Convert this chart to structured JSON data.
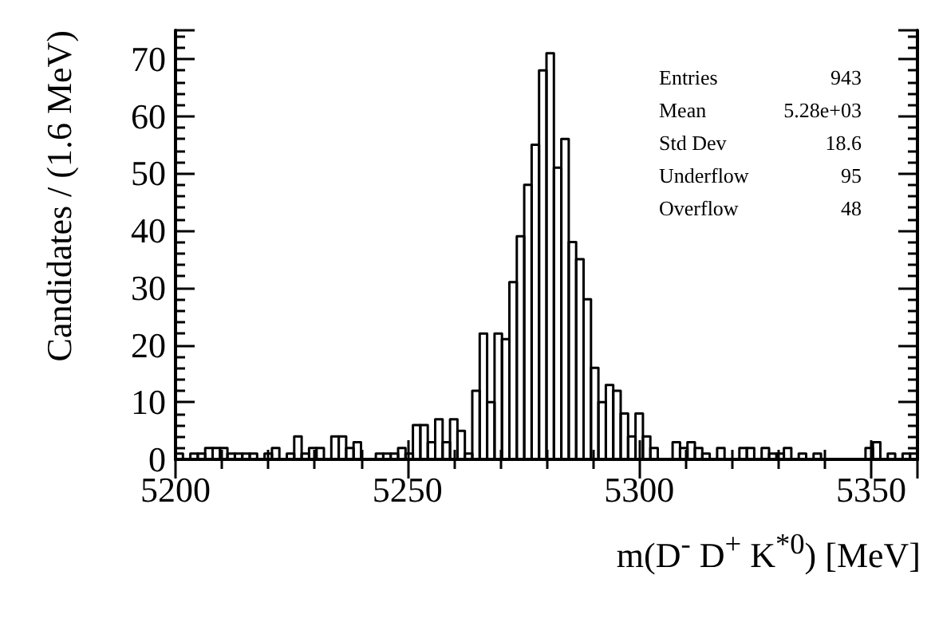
{
  "chart_data": {
    "type": "histogram",
    "xlabel": "m(D$^{-}$ D$^{+}$ K$^{*0}$) [MeV]",
    "ylabel": "Candidates / (1.6 MeV)",
    "annotations": [
      "Entries 943",
      "Mean 5.28e+03",
      "Std Dev 18.6",
      "Underflow 95",
      "Overflow 48"
    ],
    "color": "#000000",
    "bins": [
      5200,
      5201.6,
      5203.2,
      5204.8,
      5206.4,
      5208,
      5209.6,
      5211.2,
      5212.8,
      5214.4,
      5216,
      5217.6,
      5219.2,
      5220.8,
      5222.4,
      5224,
      5225.6,
      5227.2,
      5228.8,
      5230.4,
      5232,
      5233.6,
      5235.2,
      5236.8,
      5238.4,
      5240,
      5241.6,
      5243.2,
      5244.8,
      5246.4,
      5248,
      5249.6,
      5251.2,
      5252.8,
      5254.4,
      5256,
      5257.6,
      5259.2,
      5260.8,
      5262.4,
      5264,
      5265.6,
      5267.2,
      5268.8,
      5270.4,
      5272,
      5273.6,
      5275.2,
      5276.8,
      5278.4,
      5280,
      5281.6,
      5283.2,
      5284.8,
      5286.4,
      5288,
      5289.6,
      5291.2,
      5292.8,
      5294.4,
      5296,
      5297.6,
      5299.2,
      5300.8,
      5302.4,
      5304,
      5305.6,
      5307.2,
      5308.8,
      5310.4,
      5312,
      5313.6,
      5315.2,
      5316.8,
      5318.4,
      5320,
      5321.6,
      5323.2,
      5324.8,
      5326.4,
      5328,
      5329.6,
      5331.2,
      5332.8,
      5334.4,
      5336,
      5337.6,
      5339.2,
      5340.8,
      5342.4,
      5344,
      5345.6,
      5347.2,
      5348.8,
      5350.4,
      5352,
      5353.6,
      5355.2,
      5356.8,
      5358.4,
      5360
    ],
    "values": [
      1,
      0,
      1,
      1,
      2,
      2,
      2,
      1,
      1,
      1,
      1,
      0,
      1,
      2,
      0,
      1,
      4,
      1,
      2,
      2,
      0,
      4,
      4,
      2,
      3,
      0,
      0,
      1,
      1,
      1,
      2,
      1,
      6,
      6,
      3,
      7,
      3,
      7,
      5,
      1,
      12,
      22,
      10,
      22,
      21,
      31,
      39,
      48,
      55,
      68,
      71,
      51,
      56,
      38,
      35,
      28,
      16,
      10,
      13,
      12,
      8,
      4,
      8,
      4,
      2,
      0,
      0,
      3,
      2,
      3,
      2,
      1,
      0,
      2,
      0,
      0,
      2,
      2,
      0,
      2,
      1,
      1,
      2,
      0,
      1,
      0,
      1,
      0,
      0,
      0,
      0,
      0,
      0,
      2,
      3,
      0,
      1,
      0,
      1,
      1
    ],
    "xlim": [
      5200,
      5360
    ],
    "xticks": [
      5200,
      5250,
      5300,
      5350
    ],
    "ylim": [
      0,
      75
    ],
    "yticks": [
      0,
      10,
      20,
      30,
      40,
      50,
      60,
      70
    ],
    "grid": false
  }
}
